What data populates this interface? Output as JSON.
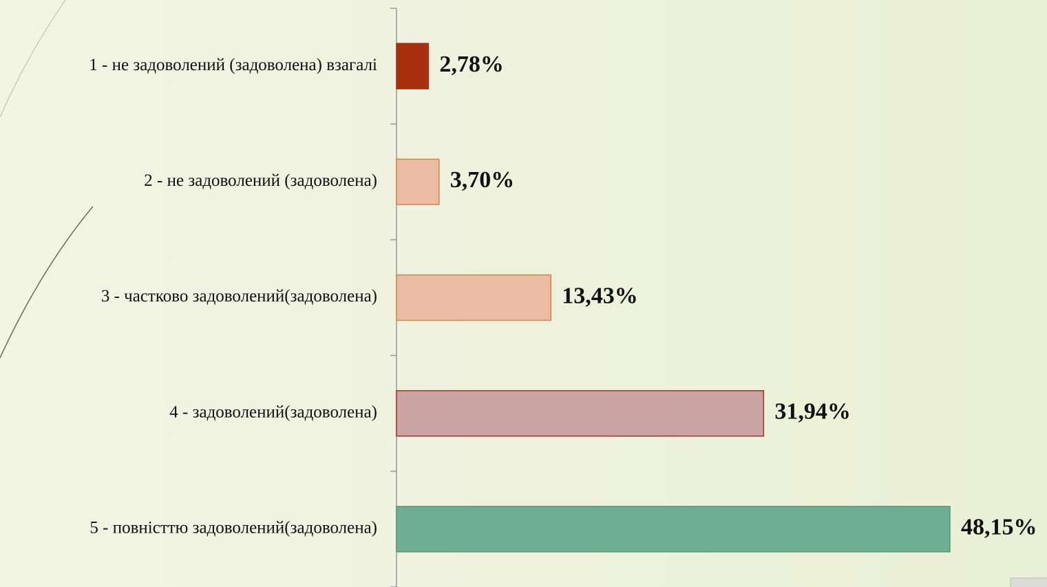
{
  "chart_data": {
    "type": "bar",
    "orientation": "horizontal",
    "categories": [
      "1 - не задоволений (задоволена) взагалі",
      "2 - не задоволений (задоволена)",
      "3 -  частково задоволений(задоволена)",
      "4 - задоволений(задоволена)",
      "5 - повністтю задоволений(задоволена)"
    ],
    "values": [
      2.78,
      3.7,
      13.43,
      31.94,
      48.15
    ],
    "value_labels": [
      "2,78%",
      "3,70%",
      "13,43%",
      "31,94%",
      "48,15%"
    ],
    "colors": [
      "#a8300f",
      "#ebbba3",
      "#ebbba3",
      "#cca3a3",
      "#6fae92"
    ],
    "edge_colors": [
      "#a8300f",
      "#e0823c",
      "#e0823c",
      "#a8301e",
      "#4f9a7a"
    ]
  }
}
